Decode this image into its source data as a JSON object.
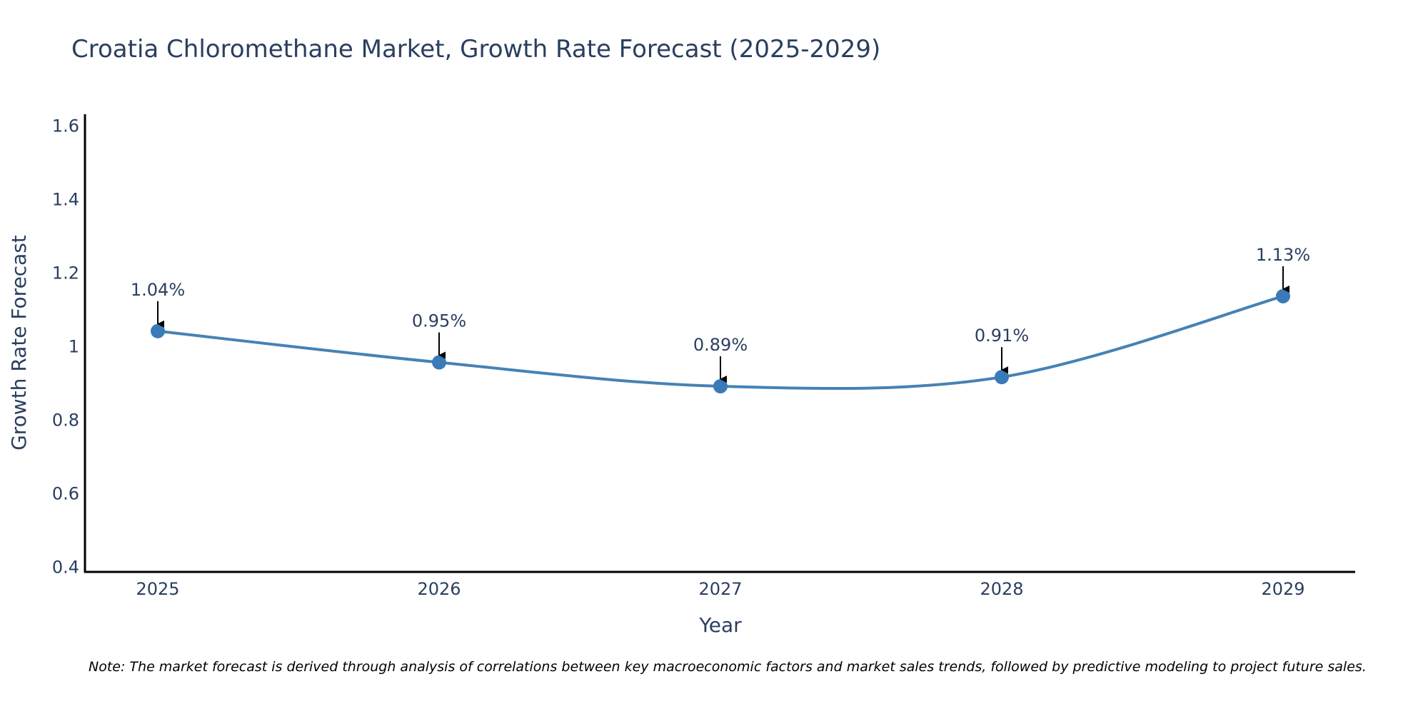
{
  "colors": {
    "line": "#4682b4",
    "marker": "#3a7ab8",
    "text": "#2a3f5f",
    "axis": "#000000",
    "arrow": "#000000"
  },
  "chart_data": {
    "type": "line",
    "title": "Croatia Chloromethane Market, Growth Rate Forecast (2025-2029)",
    "xlabel": "Year",
    "ylabel": "Growth Rate Forecast",
    "categories": [
      "2025",
      "2026",
      "2027",
      "2028",
      "2029"
    ],
    "values": [
      1.04,
      0.955,
      0.89,
      0.915,
      1.135
    ],
    "data_labels": [
      "1.04%",
      "0.95%",
      "0.89%",
      "0.91%",
      "1.13%"
    ],
    "ylim": [
      0.385,
      1.63
    ],
    "yticks": [
      0.4,
      0.6,
      0.8,
      1.0,
      1.2,
      1.4,
      1.6
    ],
    "ytick_labels": [
      "0.4",
      "0.6",
      "0.8",
      "1",
      "1.2",
      "1.4",
      "1.6"
    ],
    "grid": false,
    "line_shape": "spline",
    "note": "Note: The market forecast is derived through analysis of correlations between key macroeconomic factors and market sales trends, followed by predictive modeling to project future sales."
  }
}
